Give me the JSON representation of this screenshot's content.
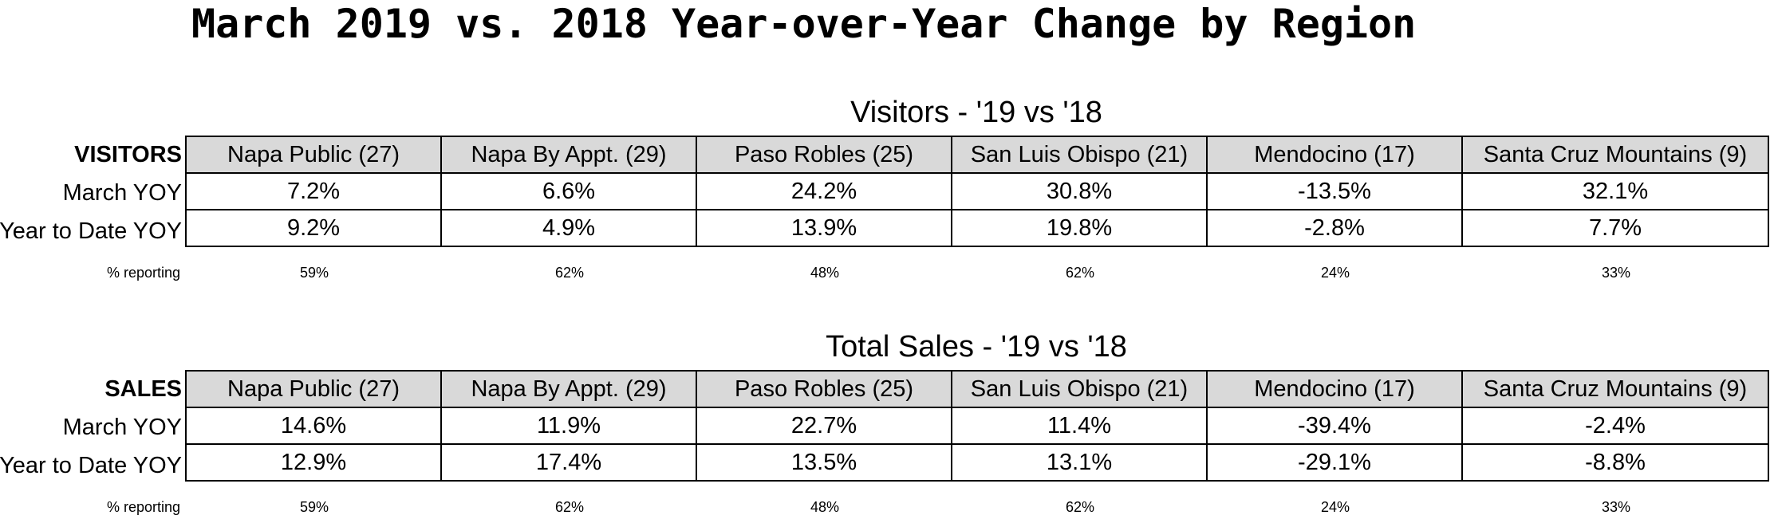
{
  "title": "March 2019 vs. 2018 Year-over-Year Change by Region",
  "columns": [
    "Napa Public (27)",
    "Napa By Appt. (29)",
    "Paso Robles (25)",
    "San Luis Obispo (21)",
    "Mendocino (17)",
    "Santa Cruz Mountains (9)"
  ],
  "visitors": {
    "section_title": "Visitors - '19 vs '18",
    "header_label": "VISITORS",
    "rows": [
      {
        "label": "March YOY",
        "values": [
          "7.2%",
          "6.6%",
          "24.2%",
          "30.8%",
          "-13.5%",
          "32.1%"
        ]
      },
      {
        "label": "Year to Date YOY",
        "values": [
          "9.2%",
          "4.9%",
          "13.9%",
          "19.8%",
          "-2.8%",
          "7.7%"
        ]
      }
    ],
    "reporting_label": "% reporting",
    "reporting": [
      "59%",
      "62%",
      "48%",
      "62%",
      "24%",
      "33%"
    ]
  },
  "sales": {
    "section_title": "Total Sales - '19 vs '18",
    "header_label": "SALES",
    "rows": [
      {
        "label": "March YOY",
        "values": [
          "14.6%",
          "11.9%",
          "22.7%",
          "11.4%",
          "-39.4%",
          "-2.4%"
        ]
      },
      {
        "label": "Year to Date YOY",
        "values": [
          "12.9%",
          "17.4%",
          "13.5%",
          "13.1%",
          "-29.1%",
          "-8.8%"
        ]
      }
    ],
    "reporting_label": "% reporting",
    "reporting": [
      "59%",
      "62%",
      "48%",
      "62%",
      "24%",
      "33%"
    ]
  }
}
